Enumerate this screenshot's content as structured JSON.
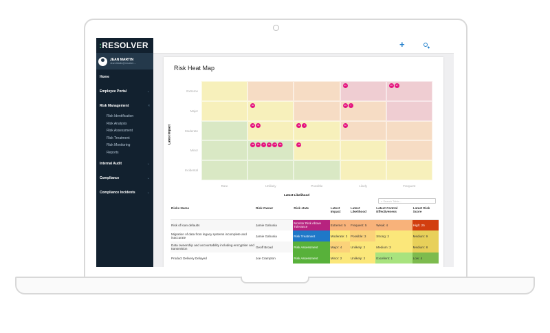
{
  "sidebar": {
    "logo_mark": ":",
    "logo_text": "RESOLVER",
    "user_name": "JEAN MARTIN",
    "user_email": "Jean.Martin@resolver....",
    "items": [
      {
        "label": "Home"
      },
      {
        "label": "Employee Portal"
      },
      {
        "label": "Risk Management"
      },
      {
        "label": "Internal Audit"
      },
      {
        "label": "Compliance"
      },
      {
        "label": "Compliance Incidents"
      }
    ],
    "subitems": [
      "Risk Identification",
      "Risk Analysis",
      "Risk Assessment",
      "Risk Treatment",
      "Risk Monitoring",
      "Reports"
    ]
  },
  "topbar": {
    "add_icon": "+",
    "search_icon": "search-icon"
  },
  "card": {
    "title": "Risk Heat Map"
  },
  "chart_data": {
    "type": "heatmap",
    "title": "Risk Heat Map",
    "xlabel": "Latest Likelihood",
    "ylabel": "Latest Impact",
    "x_categories": [
      "Rare",
      "Unlikely",
      "Possible",
      "Likely",
      "Frequent"
    ],
    "y_categories": [
      "Extreme",
      "Major",
      "Moderate",
      "Minor",
      "Incidental"
    ],
    "cell_colors": [
      [
        "y",
        "o",
        "o",
        "p",
        "p"
      ],
      [
        "y",
        "y",
        "o",
        "o",
        "p"
      ],
      [
        "g",
        "y",
        "y",
        "o",
        "o"
      ],
      [
        "g",
        "g",
        "y",
        "y",
        "o"
      ],
      [
        "g",
        "g",
        "g",
        "y",
        "y"
      ]
    ],
    "bubbles": [
      [
        [],
        [],
        [],
        [
          "41"
        ],
        [
          "40",
          "37"
        ]
      ],
      [
        [],
        [
          "80"
        ],
        [],
        [
          "49",
          "7"
        ],
        []
      ],
      [
        [],
        [
          "44",
          "34"
        ],
        [
          "42",
          "5"
        ],
        [
          "52"
        ],
        []
      ],
      [
        [],
        [
          "38",
          "33",
          "4",
          "32",
          "15",
          "30"
        ],
        [
          "46"
        ],
        [],
        []
      ],
      [
        [],
        [],
        [],
        [],
        []
      ]
    ],
    "colors": {
      "g": "#d9e8c4",
      "y": "#f7f0bb",
      "o": "#f6dcc4",
      "p": "#efcdd2",
      "bubble": "#e4157f"
    }
  },
  "table": {
    "search_placeholder": "Search Table...",
    "headers": [
      "Risks Name",
      "Risk Owner",
      "Risk state",
      "Latest Impact",
      "Latest Likelihood",
      "Latest Control Effectiveness",
      "Latest Risk Score"
    ],
    "rows": [
      {
        "cells": [
          "Risk of loan defaults",
          "Jamie Gahunia",
          "Monitor Risk Above Tolerance",
          "Extreme: 5",
          "Frequent: 5",
          "Weak: 4",
          "High: 25"
        ],
        "colors": [
          "#b7237f",
          "#f8b27a",
          "#f8b27a",
          "#f8b27a",
          "#d23e0f"
        ]
      },
      {
        "cells": [
          "Migration of data from legacy systems incomplete and inaccurate",
          "Jamie Gahunia",
          "Risk Treatment",
          "Moderate: 3",
          "Possible: 3",
          "Strong: 2",
          "Medium: 9"
        ],
        "colors": [
          "#1f78c8",
          "#fbe77a",
          "#fbd27a",
          "#fbe77a",
          "#e8d05a"
        ]
      },
      {
        "cells": [
          "Data ownership and accountability including encryption and transmision",
          "Geoff Broad",
          "Risk Assessment",
          "Major: 4",
          "Unlikely: 2",
          "Medium: 3",
          "Medium: 8"
        ],
        "colors": [
          "#58b13a",
          "#fbd27a",
          "#fbe77a",
          "#fbe77a",
          "#e8d05a"
        ]
      },
      {
        "cells": [
          "Product Delivery Delayed",
          "Joe Crampton",
          "Risk Assessment",
          "Minor: 2",
          "Unlikely: 2",
          "Excellent: 1",
          "Low: 4"
        ],
        "colors": [
          "#58b13a",
          "#fbe77a",
          "#fbe77a",
          "#a8e37e",
          "#7dbb4e"
        ]
      }
    ]
  }
}
